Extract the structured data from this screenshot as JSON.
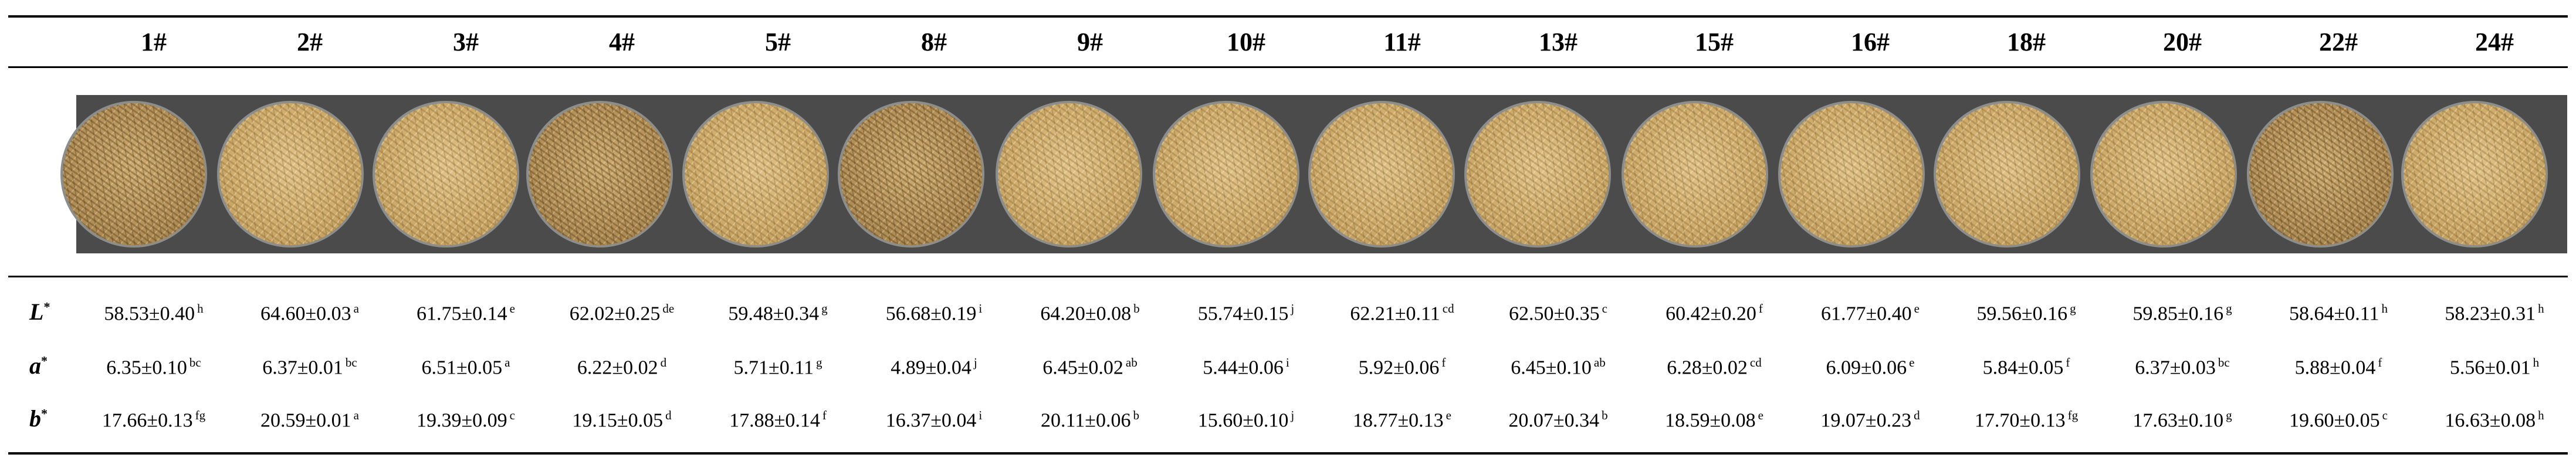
{
  "samples": [
    "1#",
    "2#",
    "3#",
    "4#",
    "5#",
    "8#",
    "9#",
    "10#",
    "11#",
    "13#",
    "15#",
    "16#",
    "18#",
    "20#",
    "22#",
    "24#"
  ],
  "photo": {
    "description_icon": "oat-grain-petri-dish"
  },
  "rows": [
    {
      "label": "L",
      "label_mark": "*",
      "values": [
        "58.53±0.40",
        "64.60±0.03",
        "61.75±0.14",
        "62.02±0.25",
        "59.48±0.34",
        "56.68±0.19",
        "64.20±0.08",
        "55.74±0.15",
        "62.21±0.11",
        "62.50±0.35",
        "60.42±0.20",
        "61.77±0.40",
        "59.56±0.16",
        "59.85±0.16",
        "58.64±0.11",
        "58.23±0.31"
      ],
      "letters": [
        "h",
        "a",
        "e",
        "de",
        "g",
        "i",
        "b",
        "j",
        "cd",
        "c",
        "f",
        "e",
        "g",
        "g",
        "h",
        "h"
      ]
    },
    {
      "label": "a",
      "label_mark": "*",
      "values": [
        "6.35±0.10",
        "6.37±0.01",
        "6.51±0.05",
        "6.22±0.02",
        "5.71±0.11",
        "4.89±0.04",
        "6.45±0.02",
        "5.44±0.06",
        "5.92±0.06",
        "6.45±0.10",
        "6.28±0.02",
        "6.09±0.06",
        "5.84±0.05",
        "6.37±0.03",
        "5.88±0.04",
        "5.56±0.01"
      ],
      "letters": [
        "bc",
        "bc",
        "a",
        "d",
        "g",
        "j",
        "ab",
        "i",
        "f",
        "ab",
        "cd",
        "e",
        "f",
        "bc",
        "f",
        "h"
      ]
    },
    {
      "label": "b",
      "label_mark": "*",
      "values": [
        "17.66±0.13",
        "20.59±0.01",
        "19.39±0.09",
        "19.15±0.05",
        "17.88±0.14",
        "16.37±0.04",
        "20.11±0.06",
        "15.60±0.10",
        "18.77±0.13",
        "20.07±0.34",
        "18.59±0.08",
        "19.07±0.23",
        "17.70±0.13",
        "17.63±0.10",
        "19.60±0.05",
        "16.63±0.08"
      ],
      "letters": [
        "fg",
        "a",
        "c",
        "d",
        "f",
        "i",
        "b",
        "j",
        "e",
        "b",
        "e",
        "d",
        "fg",
        "g",
        "c",
        "h"
      ]
    }
  ]
}
